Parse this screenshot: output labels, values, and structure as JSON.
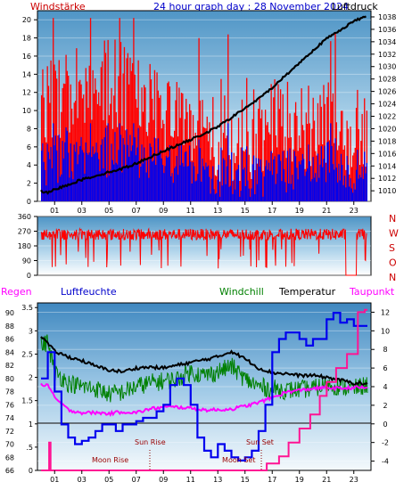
{
  "header": {
    "left_label": "Windstärke",
    "title": "24 hour graph day : 28 November 2024",
    "right_label": "Luftdruck"
  },
  "colors": {
    "wind": "#ff0000",
    "wind_gust": "#ff2020",
    "wind_avg": "#0000ee",
    "pressure": "#000000",
    "humidity": "#0000ff",
    "windchill": "#008000",
    "temperature": "#000000",
    "dewpoint": "#ff00ff",
    "rain": "#ff1493",
    "label_red": "#cc0000",
    "label_blue": "#0000cc",
    "label_green": "#008000",
    "label_magenta": "#ff00ff"
  },
  "chart_data": [
    {
      "type": "bar+line",
      "name": "wind_and_pressure",
      "x_ticks": [
        "01",
        "03",
        "05",
        "07",
        "09",
        "11",
        "13",
        "15",
        "17",
        "19",
        "21",
        "23"
      ],
      "y_left_ticks": [
        "0",
        "2",
        "4",
        "6",
        "8",
        "10",
        "12",
        "14",
        "16",
        "18",
        "20"
      ],
      "y_left_range": [
        0,
        21
      ],
      "y_right_ticks": [
        "1010",
        "1012",
        "1014",
        "1016",
        "1018",
        "1020",
        "1022",
        "1024",
        "1026",
        "1028",
        "1030",
        "1032",
        "1034",
        "1036",
        "1038"
      ],
      "y_right_range": [
        1008.3,
        1039
      ],
      "pressure_hours": [
        0,
        0.5,
        1,
        2,
        3,
        4,
        5,
        6,
        7,
        8,
        9,
        10,
        11,
        12,
        13,
        14,
        15,
        16,
        17,
        18,
        19,
        20,
        21,
        22,
        23,
        24
      ],
      "pressure_values": [
        1010.0,
        1009.6,
        1010.2,
        1011.0,
        1011.8,
        1012.4,
        1013.0,
        1013.6,
        1014.4,
        1015.4,
        1016.4,
        1017.3,
        1018.2,
        1019.2,
        1020.3,
        1021.8,
        1023.3,
        1024.8,
        1026.6,
        1028.6,
        1030.6,
        1032.6,
        1034.5,
        1035.9,
        1037.3,
        1038.2
      ]
    },
    {
      "type": "line",
      "name": "wind_direction",
      "y_left_ticks": [
        "0",
        "90",
        "180",
        "270",
        "360"
      ],
      "y_range": [
        0,
        360
      ],
      "compass_labels": [
        "N",
        "W",
        "S",
        "O",
        "N"
      ]
    },
    {
      "type": "line",
      "name": "humidity_temperature_rain",
      "header_labels": {
        "rain": "Regen",
        "humidity": "Luftfeuchte",
        "windchill": "Windchill",
        "temperature": "Temperatur",
        "dewpoint": "Taupunkt"
      },
      "x_ticks": [
        "01",
        "03",
        "05",
        "07",
        "09",
        "11",
        "13",
        "15",
        "17",
        "19",
        "21",
        "23"
      ],
      "rain_ticks": [
        "0",
        ".5",
        "1",
        "1.5",
        "2",
        "2.5",
        "3",
        "3.5"
      ],
      "rain_range": [
        0,
        3.6
      ],
      "humidity_ticks": [
        "66",
        "68",
        "70",
        "72",
        "74",
        "76",
        "78",
        "80",
        "82",
        "84",
        "86",
        "88",
        "90"
      ],
      "humidity_range": [
        66,
        91.5
      ],
      "temp_ticks": [
        "-4",
        "-2",
        "0",
        "2",
        "4",
        "6",
        "8",
        "10",
        "12"
      ],
      "temp_range": [
        -5,
        13
      ],
      "events": [
        {
          "label": "Moon Rise",
          "hour": 8.0
        },
        {
          "label": "Sun Rise",
          "hour": 8.0
        },
        {
          "label": "Moon Set",
          "hour": 16.2
        },
        {
          "label": "Sun Set",
          "hour": 16.2
        }
      ],
      "humidity_hours": [
        0,
        0.5,
        1,
        1.5,
        2,
        2.5,
        3,
        3.5,
        4,
        4.5,
        5,
        5.5,
        6,
        6.5,
        7,
        7.5,
        8,
        8.5,
        9,
        9.5,
        10,
        10.5,
        11,
        11.5,
        12,
        12.5,
        13,
        13.5,
        14,
        14.5,
        15,
        15.5,
        16,
        16.5,
        17,
        17.5,
        18,
        18.5,
        19,
        19.5,
        20,
        20.5,
        21,
        21.5,
        22,
        22.5,
        23,
        23.5,
        24
      ],
      "humidity_values": [
        80,
        84,
        78,
        73,
        71,
        70,
        70.5,
        71,
        72,
        73,
        73,
        72,
        73,
        73,
        73.5,
        74,
        74,
        75,
        76,
        79,
        80,
        79,
        76,
        71,
        69,
        68,
        70,
        69,
        68,
        67.5,
        68,
        69,
        72,
        76,
        84,
        86,
        87,
        87,
        86,
        85,
        86,
        86,
        89,
        90,
        88.5,
        89,
        88,
        88,
        88
      ],
      "temperature_hours": [
        0,
        0.5,
        1,
        2,
        3,
        4,
        5,
        6,
        7,
        8,
        9,
        10,
        11,
        12,
        13,
        14,
        15,
        16,
        17,
        18,
        19,
        20,
        21,
        22,
        23,
        24
      ],
      "temperature_values": [
        9.5,
        8.6,
        7.8,
        7.2,
        6.8,
        6.2,
        5.8,
        5.6,
        6.0,
        6.1,
        6.0,
        6.3,
        6.6,
        6.9,
        7.2,
        7.8,
        7.0,
        6.0,
        5.5,
        5.4,
        5.2,
        5.2,
        5.0,
        4.7,
        4.4,
        4.3
      ],
      "windchill_hours": [
        0,
        0.5,
        1,
        2,
        3,
        4,
        5,
        6,
        7,
        8,
        9,
        10,
        11,
        12,
        13,
        14,
        15,
        16,
        17,
        18,
        19,
        20,
        21,
        22,
        23,
        24
      ],
      "windchill_values": [
        8.4,
        8.8,
        5.6,
        4.4,
        4.0,
        3.8,
        3.2,
        3.4,
        4.0,
        4.4,
        4.6,
        4.8,
        5.6,
        5.2,
        5.6,
        6.2,
        4.8,
        4.0,
        3.8,
        3.6,
        3.7,
        3.8,
        4.2,
        4.0,
        3.8,
        4.2
      ],
      "dewpoint_hours": [
        0,
        0.5,
        1,
        2,
        3,
        4,
        5,
        6,
        7,
        8,
        9,
        10,
        11,
        12,
        13,
        14,
        15,
        16,
        17,
        18,
        19,
        20,
        21,
        22,
        23,
        24
      ],
      "dewpoint_values": [
        4.2,
        4.2,
        2.8,
        1.5,
        1.2,
        1.2,
        1.1,
        1.3,
        1.2,
        1.6,
        1.8,
        1.8,
        1.7,
        1.5,
        1.5,
        1.6,
        1.9,
        2.3,
        2.8,
        3.4,
        3.6,
        3.8,
        3.9,
        3.8,
        3.9,
        3.9
      ],
      "rain_hours": [
        0,
        0.45,
        0.6,
        0.7,
        1.0,
        16.1,
        16.6,
        17.5,
        18.2,
        19.0,
        19.8,
        20.5,
        21.0,
        21.7,
        22.5,
        23.3,
        23.8
      ],
      "rain_values": [
        0,
        0,
        0.6,
        0,
        0,
        0,
        0.15,
        0.3,
        0.6,
        0.9,
        1.2,
        1.6,
        1.9,
        2.2,
        2.5,
        3.4,
        3.45
      ]
    }
  ]
}
